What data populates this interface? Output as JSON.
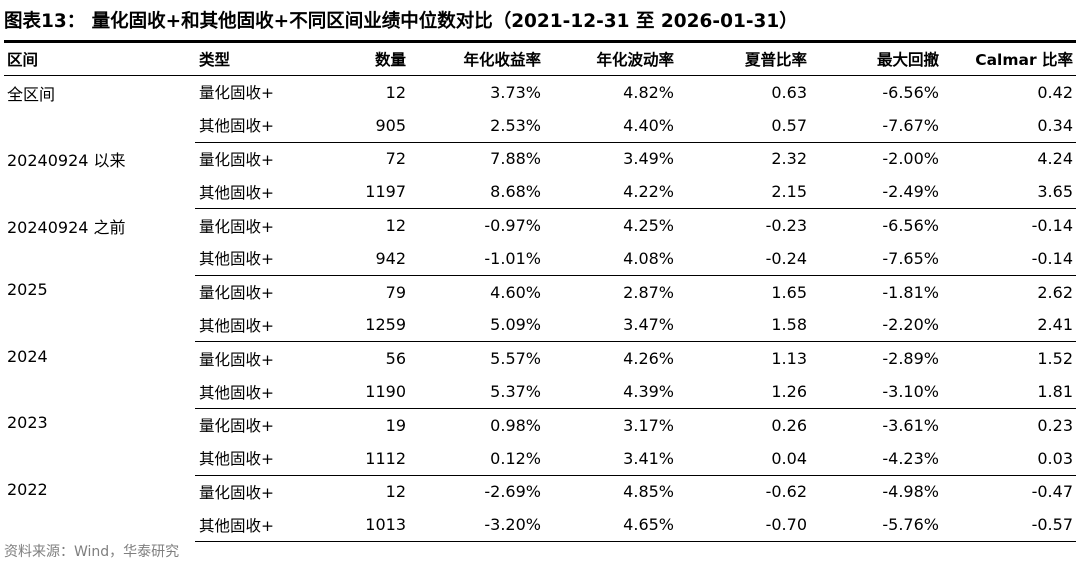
{
  "title": "图表13：  量化固收+和其他固收+不同区间业绩中位数对比（2021-12-31 至 2026-01-31）",
  "headers": [
    "区间",
    "类型",
    "数量",
    "年化收益率",
    "年化波动率",
    "夏普比率",
    "最大回撤",
    "Calmar 比率"
  ],
  "groups": [
    {
      "interval": "全区间",
      "rows": [
        {
          "type": "量化固收+",
          "count": "12",
          "return": "3.73%",
          "vol": "4.82%",
          "sharpe": "0.63",
          "mdd": "-6.56%",
          "calmar": "0.42"
        },
        {
          "type": "其他固收+",
          "count": "905",
          "return": "2.53%",
          "vol": "4.40%",
          "sharpe": "0.57",
          "mdd": "-7.67%",
          "calmar": "0.34"
        }
      ]
    },
    {
      "interval": "20240924 以来",
      "rows": [
        {
          "type": "量化固收+",
          "count": "72",
          "return": "7.88%",
          "vol": "3.49%",
          "sharpe": "2.32",
          "mdd": "-2.00%",
          "calmar": "4.24"
        },
        {
          "type": "其他固收+",
          "count": "1197",
          "return": "8.68%",
          "vol": "4.22%",
          "sharpe": "2.15",
          "mdd": "-2.49%",
          "calmar": "3.65"
        }
      ]
    },
    {
      "interval": "20240924 之前",
      "rows": [
        {
          "type": "量化固收+",
          "count": "12",
          "return": "-0.97%",
          "vol": "4.25%",
          "sharpe": "-0.23",
          "mdd": "-6.56%",
          "calmar": "-0.14"
        },
        {
          "type": "其他固收+",
          "count": "942",
          "return": "-1.01%",
          "vol": "4.08%",
          "sharpe": "-0.24",
          "mdd": "-7.65%",
          "calmar": "-0.14"
        }
      ]
    },
    {
      "interval": "2025",
      "rows": [
        {
          "type": "量化固收+",
          "count": "79",
          "return": "4.60%",
          "vol": "2.87%",
          "sharpe": "1.65",
          "mdd": "-1.81%",
          "calmar": "2.62"
        },
        {
          "type": "其他固收+",
          "count": "1259",
          "return": "5.09%",
          "vol": "3.47%",
          "sharpe": "1.58",
          "mdd": "-2.20%",
          "calmar": "2.41"
        }
      ]
    },
    {
      "interval": "2024",
      "rows": [
        {
          "type": "量化固收+",
          "count": "56",
          "return": "5.57%",
          "vol": "4.26%",
          "sharpe": "1.13",
          "mdd": "-2.89%",
          "calmar": "1.52"
        },
        {
          "type": "其他固收+",
          "count": "1190",
          "return": "5.37%",
          "vol": "4.39%",
          "sharpe": "1.26",
          "mdd": "-3.10%",
          "calmar": "1.81"
        }
      ]
    },
    {
      "interval": "2023",
      "rows": [
        {
          "type": "量化固收+",
          "count": "19",
          "return": "0.98%",
          "vol": "3.17%",
          "sharpe": "0.26",
          "mdd": "-3.61%",
          "calmar": "0.23"
        },
        {
          "type": "其他固收+",
          "count": "1112",
          "return": "0.12%",
          "vol": "3.41%",
          "sharpe": "0.04",
          "mdd": "-4.23%",
          "calmar": "0.03"
        }
      ]
    },
    {
      "interval": "2022",
      "rows": [
        {
          "type": "量化固收+",
          "count": "12",
          "return": "-2.69%",
          "vol": "4.85%",
          "sharpe": "-0.62",
          "mdd": "-4.98%",
          "calmar": "-0.47"
        },
        {
          "type": "其他固收+",
          "count": "1013",
          "return": "-3.20%",
          "vol": "4.65%",
          "sharpe": "-0.70",
          "mdd": "-5.76%",
          "calmar": "-0.57"
        }
      ]
    }
  ],
  "source": "资料来源：Wind，华泰研究"
}
